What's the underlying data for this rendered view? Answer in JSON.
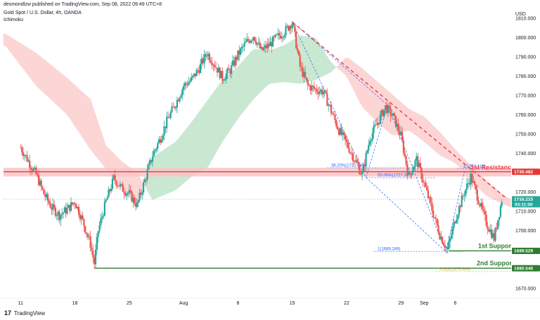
{
  "header": {
    "publish_line": "desmondlzw published on TradingView.com, Sep 08, 2022 09:49 UTC+8",
    "symbol_line": "Gold Spot / U.S. Dollar, 4h, OANDA",
    "indicator": "Ichimoku"
  },
  "footer": {
    "brand_glyph": "17",
    "brand": "TradingView"
  },
  "chart_data": {
    "type": "candlestick",
    "currency": "USD",
    "ylim": [
      1665,
      1815
    ],
    "y_ticks": [
      1670,
      1680,
      1690,
      1700,
      1710,
      1720,
      1730,
      1740,
      1750,
      1760,
      1770,
      1780,
      1790,
      1800,
      1810
    ],
    "y_tick_labels": [
      "1670.000",
      "1680.000",
      "1690.000",
      "1700.000",
      "1710.000",
      "1720.000",
      "1730.000",
      "1740.000",
      "1750.000",
      "1760.000",
      "1770.000",
      "1780.000",
      "1790.000",
      "1800.000",
      "1810.000"
    ],
    "x_ticks": [
      {
        "label": "11",
        "day": 0
      },
      {
        "label": "18",
        "day": 7
      },
      {
        "label": "25",
        "day": 14
      },
      {
        "label": "Aug",
        "day": 21
      },
      {
        "label": "8",
        "day": 28
      },
      {
        "label": "15",
        "day": 35
      },
      {
        "label": "22",
        "day": 42
      },
      {
        "label": "29",
        "day": 49
      },
      {
        "label": "Sep",
        "day": 52
      },
      {
        "label": "6",
        "day": 56
      }
    ],
    "x_domain_days": [
      -2.2,
      63.2
    ],
    "colors": {
      "up": "#26a69a",
      "down": "#ef5350",
      "cloud_bull": "#c9e8d2",
      "cloud_bear": "#fcd5d5",
      "resistance": "#f23645",
      "support": "#2e7d32",
      "fib": "#2962ff",
      "fib_ext": "#f5a623"
    },
    "price_path": [
      [
        0,
        1743
      ],
      [
        1,
        1736
      ],
      [
        2,
        1729
      ],
      [
        3,
        1719
      ],
      [
        4,
        1712
      ],
      [
        5,
        1708
      ],
      [
        6,
        1711
      ],
      [
        7,
        1715
      ],
      [
        8,
        1705
      ],
      [
        9,
        1693
      ],
      [
        9.5,
        1683
      ],
      [
        10,
        1700
      ],
      [
        11,
        1715
      ],
      [
        12,
        1727
      ],
      [
        13,
        1722
      ],
      [
        14,
        1719
      ],
      [
        15,
        1713
      ],
      [
        16,
        1726
      ],
      [
        17,
        1739
      ],
      [
        18,
        1748
      ],
      [
        19,
        1758
      ],
      [
        20,
        1766
      ],
      [
        21,
        1775
      ],
      [
        22,
        1778
      ],
      [
        23,
        1784
      ],
      [
        24,
        1792
      ],
      [
        25,
        1786
      ],
      [
        26,
        1779
      ],
      [
        27,
        1783
      ],
      [
        28,
        1791
      ],
      [
        29,
        1797
      ],
      [
        30,
        1801
      ],
      [
        31,
        1793
      ],
      [
        32,
        1796
      ],
      [
        33,
        1800
      ],
      [
        34,
        1803
      ],
      [
        35,
        1808
      ],
      [
        36,
        1785
      ],
      [
        37,
        1775
      ],
      [
        38,
        1773
      ],
      [
        39,
        1772
      ],
      [
        40,
        1762
      ],
      [
        41,
        1752
      ],
      [
        42,
        1745
      ],
      [
        43,
        1737
      ],
      [
        44,
        1729
      ],
      [
        45,
        1748
      ],
      [
        46,
        1756
      ],
      [
        47,
        1764
      ],
      [
        48,
        1759
      ],
      [
        49,
        1749
      ],
      [
        50,
        1728
      ],
      [
        51,
        1737
      ],
      [
        52,
        1724
      ],
      [
        53,
        1711
      ],
      [
        54,
        1698
      ],
      [
        55,
        1690
      ],
      [
        56,
        1706
      ],
      [
        57,
        1718
      ],
      [
        58,
        1728
      ],
      [
        59,
        1716
      ],
      [
        60,
        1704
      ],
      [
        61,
        1696
      ],
      [
        62,
        1716
      ]
    ],
    "cloud_boundary_a": [
      [
        -2,
        1796
      ],
      [
        2,
        1775
      ],
      [
        6,
        1760
      ],
      [
        9,
        1742
      ],
      [
        11,
        1732
      ],
      [
        13,
        1722
      ],
      [
        15,
        1712
      ],
      [
        17,
        1738
      ],
      [
        20,
        1746
      ],
      [
        22,
        1756
      ],
      [
        24,
        1767
      ],
      [
        26,
        1778
      ],
      [
        28,
        1785
      ],
      [
        30,
        1794
      ],
      [
        32,
        1793
      ],
      [
        34,
        1796
      ],
      [
        36,
        1801
      ],
      [
        38,
        1800
      ],
      [
        40,
        1787
      ],
      [
        42,
        1780
      ],
      [
        44,
        1764
      ],
      [
        46,
        1756
      ],
      [
        48,
        1749
      ],
      [
        50,
        1752
      ],
      [
        52,
        1746
      ],
      [
        54,
        1739
      ],
      [
        56,
        1735
      ],
      [
        58,
        1726
      ],
      [
        60,
        1718
      ],
      [
        62,
        1714
      ],
      [
        63.2,
        1712
      ]
    ],
    "cloud_boundary_b": [
      [
        -2,
        1802
      ],
      [
        2,
        1792
      ],
      [
        6,
        1779
      ],
      [
        9,
        1768
      ],
      [
        11,
        1744
      ],
      [
        13,
        1736
      ],
      [
        15,
        1730
      ],
      [
        17,
        1716
      ],
      [
        20,
        1721
      ],
      [
        22,
        1728
      ],
      [
        24,
        1732
      ],
      [
        26,
        1746
      ],
      [
        28,
        1758
      ],
      [
        30,
        1768
      ],
      [
        32,
        1776
      ],
      [
        34,
        1777
      ],
      [
        36,
        1776
      ],
      [
        38,
        1778
      ],
      [
        40,
        1782
      ],
      [
        42,
        1790
      ],
      [
        44,
        1784
      ],
      [
        46,
        1777
      ],
      [
        48,
        1770
      ],
      [
        50,
        1763
      ],
      [
        52,
        1759
      ],
      [
        54,
        1751
      ],
      [
        56,
        1742
      ],
      [
        58,
        1734
      ],
      [
        60,
        1726
      ],
      [
        62,
        1719
      ],
      [
        63.2,
        1716
      ]
    ],
    "levels": [
      {
        "label": "1st Resistance",
        "price": 1730.482,
        "price_label": "1730.482",
        "start_day": -2.2,
        "color": "#f23645",
        "zone": [
          1728,
          1732.5
        ]
      },
      {
        "label": "1st Support",
        "price": 1689.529,
        "price_label": "1689.529",
        "start_day": 55.2,
        "color": "#2e7d32"
      },
      {
        "label": "2nd Support",
        "price": 1680.546,
        "price_label": "1680.546",
        "start_day": 9.5,
        "color": "#2e7d32"
      }
    ],
    "current_price": {
      "price": 1716.215,
      "label": "1716.215",
      "countdown": "03:11:00"
    },
    "fib_labels": [
      {
        "text": "38.20%(1732.548)",
        "price": 1732.548,
        "day": 40,
        "color": "#2962ff"
      },
      {
        "text": "50.00%(1727.387)",
        "price": 1727.387,
        "day": 46,
        "color": "#2962ff"
      },
      {
        "text": "1(1750.119)",
        "price": 1732.1,
        "day": 57,
        "color": "#2962ff"
      },
      {
        "text": "1(1689.249)",
        "price": 1689.249,
        "day": 46,
        "color": "#2962ff"
      },
      {
        "text": "0.618(1678.809)",
        "price": 1678.809,
        "day": 54,
        "color": "#f5a623"
      }
    ],
    "trendline": {
      "from": [
        35,
        1808
      ],
      "to": [
        62.5,
        1717
      ],
      "color": "#f23645",
      "dashed": true
    }
  }
}
